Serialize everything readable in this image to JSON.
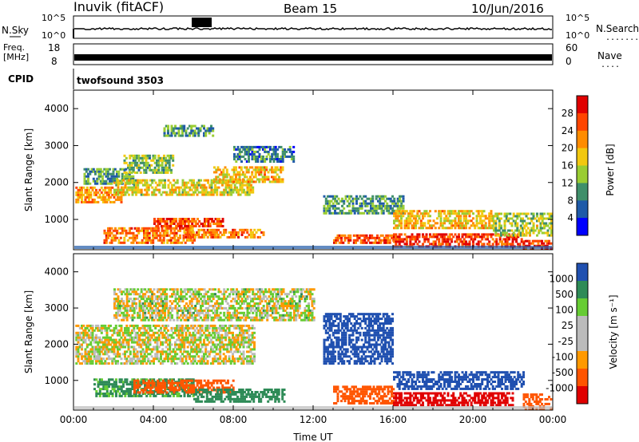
{
  "header": {
    "station": "Inuvik (fitACF)",
    "beam": "Beam 15",
    "date": "10/Jun/2016"
  },
  "strips": {
    "nsky_label": "N.Sky",
    "nsky_ticks": [
      "10^5",
      "10^0"
    ],
    "nsearch_label": "N.Search",
    "nsearch_ticks": [
      "10^5",
      "10^0"
    ],
    "freq_label_1": "Freq.",
    "freq_label_2": "[MHz]",
    "freq_ticks": [
      "18",
      "8"
    ],
    "nave_label": "Nave",
    "nave_ticks": [
      "60",
      "0"
    ],
    "cpid_label": "CPID",
    "cpid_value": "twofsound 3503",
    "dots_nsearch": "........",
    "dots_nave": "...."
  },
  "colors": {
    "power_scale": [
      "#0000ff",
      "#1f5aa8",
      "#3f8f6a",
      "#9acd32",
      "#f2c80f",
      "#ff8c00",
      "#ff4500",
      "#e00000"
    ],
    "velocity_scale": [
      "#e00000",
      "#ff5500",
      "#ff9900",
      "#bbbbbb",
      "#bbbbbb",
      "#66cc33",
      "#2e8b57",
      "#2050b0"
    ]
  },
  "chart_data": [
    {
      "type": "heatmap",
      "panel": "power",
      "xlabel": "",
      "ylabel": "Slant Range [km]",
      "xlim": [
        0,
        24
      ],
      "ylim": [
        180,
        4500
      ],
      "yticks": [
        "4000",
        "3000",
        "2000",
        "1000"
      ],
      "ytick_values": [
        4000,
        3000,
        2000,
        1000
      ],
      "colorbar_label": "Power [dB]",
      "colorbar_ticks": [
        "28",
        "24",
        "20",
        "16",
        "12",
        "8",
        "4"
      ],
      "colorbar_range": [
        0,
        30
      ],
      "bands": [
        {
          "t0": 0.0,
          "t1": 2.5,
          "r0": 1500,
          "r1": 1950,
          "level": 20
        },
        {
          "t0": 0.5,
          "t1": 3.0,
          "r0": 2000,
          "r1": 2400,
          "level": 10
        },
        {
          "t0": 1.5,
          "t1": 6.0,
          "r0": 400,
          "r1": 800,
          "level": 22
        },
        {
          "t0": 2.0,
          "t1": 9.0,
          "r0": 1700,
          "r1": 2100,
          "level": 16
        },
        {
          "t0": 2.5,
          "t1": 5.0,
          "r0": 2300,
          "r1": 2800,
          "level": 12
        },
        {
          "t0": 4.0,
          "t1": 7.5,
          "r0": 850,
          "r1": 1050,
          "level": 24
        },
        {
          "t0": 5.5,
          "t1": 9.5,
          "r0": 550,
          "r1": 800,
          "level": 22
        },
        {
          "t0": 7.0,
          "t1": 10.5,
          "r0": 2050,
          "r1": 2500,
          "level": 18
        },
        {
          "t0": 8.0,
          "t1": 11.0,
          "r0": 2600,
          "r1": 3000,
          "level": 8
        },
        {
          "t0": 4.5,
          "t1": 7.0,
          "r0": 3300,
          "r1": 3600,
          "level": 10
        },
        {
          "t0": 12.5,
          "t1": 16.5,
          "r0": 1200,
          "r1": 1700,
          "level": 10
        },
        {
          "t0": 13.0,
          "t1": 16.0,
          "r0": 400,
          "r1": 650,
          "level": 24
        },
        {
          "t0": 16.0,
          "t1": 22.5,
          "r0": 300,
          "r1": 650,
          "level": 26
        },
        {
          "t0": 16.0,
          "t1": 21.0,
          "r0": 800,
          "r1": 1300,
          "level": 18
        },
        {
          "t0": 21.0,
          "t1": 24.0,
          "r0": 600,
          "r1": 1200,
          "level": 14
        },
        {
          "t0": 22.5,
          "t1": 24.0,
          "r0": 250,
          "r1": 500,
          "level": 26
        }
      ]
    },
    {
      "type": "heatmap",
      "panel": "velocity",
      "xlabel": "Time UT",
      "ylabel": "Slant Range [km]",
      "xlim": [
        0,
        24
      ],
      "ylim": [
        180,
        4500
      ],
      "xticks": [
        "00:00",
        "04:00",
        "08:00",
        "12:00",
        "16:00",
        "20:00",
        "00:00"
      ],
      "xtick_values": [
        0,
        4,
        8,
        12,
        16,
        20,
        24
      ],
      "yticks": [
        "4000",
        "3000",
        "2000",
        "1000"
      ],
      "ytick_values": [
        4000,
        3000,
        2000,
        1000
      ],
      "colorbar_label": "Velocity [m s⁻¹]",
      "colorbar_ticks": [
        "1000",
        "500",
        "100",
        "25",
        "-25",
        "-100",
        "-500",
        "-1000"
      ],
      "bands": [
        {
          "t0": 0.0,
          "t1": 9.0,
          "r0": 1500,
          "r1": 2600,
          "vel": 0
        },
        {
          "t0": 2.0,
          "t1": 12.0,
          "r0": 2700,
          "r1": 3600,
          "vel": 10
        },
        {
          "t0": 1.0,
          "t1": 6.0,
          "r0": 600,
          "r1": 1100,
          "vel": 150
        },
        {
          "t0": 3.0,
          "t1": 8.0,
          "r0": 700,
          "r1": 1050,
          "vel": -250
        },
        {
          "t0": 6.0,
          "t1": 10.5,
          "r0": 450,
          "r1": 800,
          "vel": 300
        },
        {
          "t0": 13.0,
          "t1": 16.0,
          "r0": 400,
          "r1": 900,
          "vel": -200
        },
        {
          "t0": 16.0,
          "t1": 22.0,
          "r0": 350,
          "r1": 700,
          "vel": -600
        },
        {
          "t0": 16.0,
          "t1": 22.5,
          "r0": 800,
          "r1": 1300,
          "vel": 700
        },
        {
          "t0": 22.5,
          "t1": 24.0,
          "r0": 250,
          "r1": 700,
          "vel": -300
        },
        {
          "t0": 12.5,
          "t1": 16.0,
          "r0": 1500,
          "r1": 2900,
          "vel": 600
        }
      ]
    }
  ]
}
